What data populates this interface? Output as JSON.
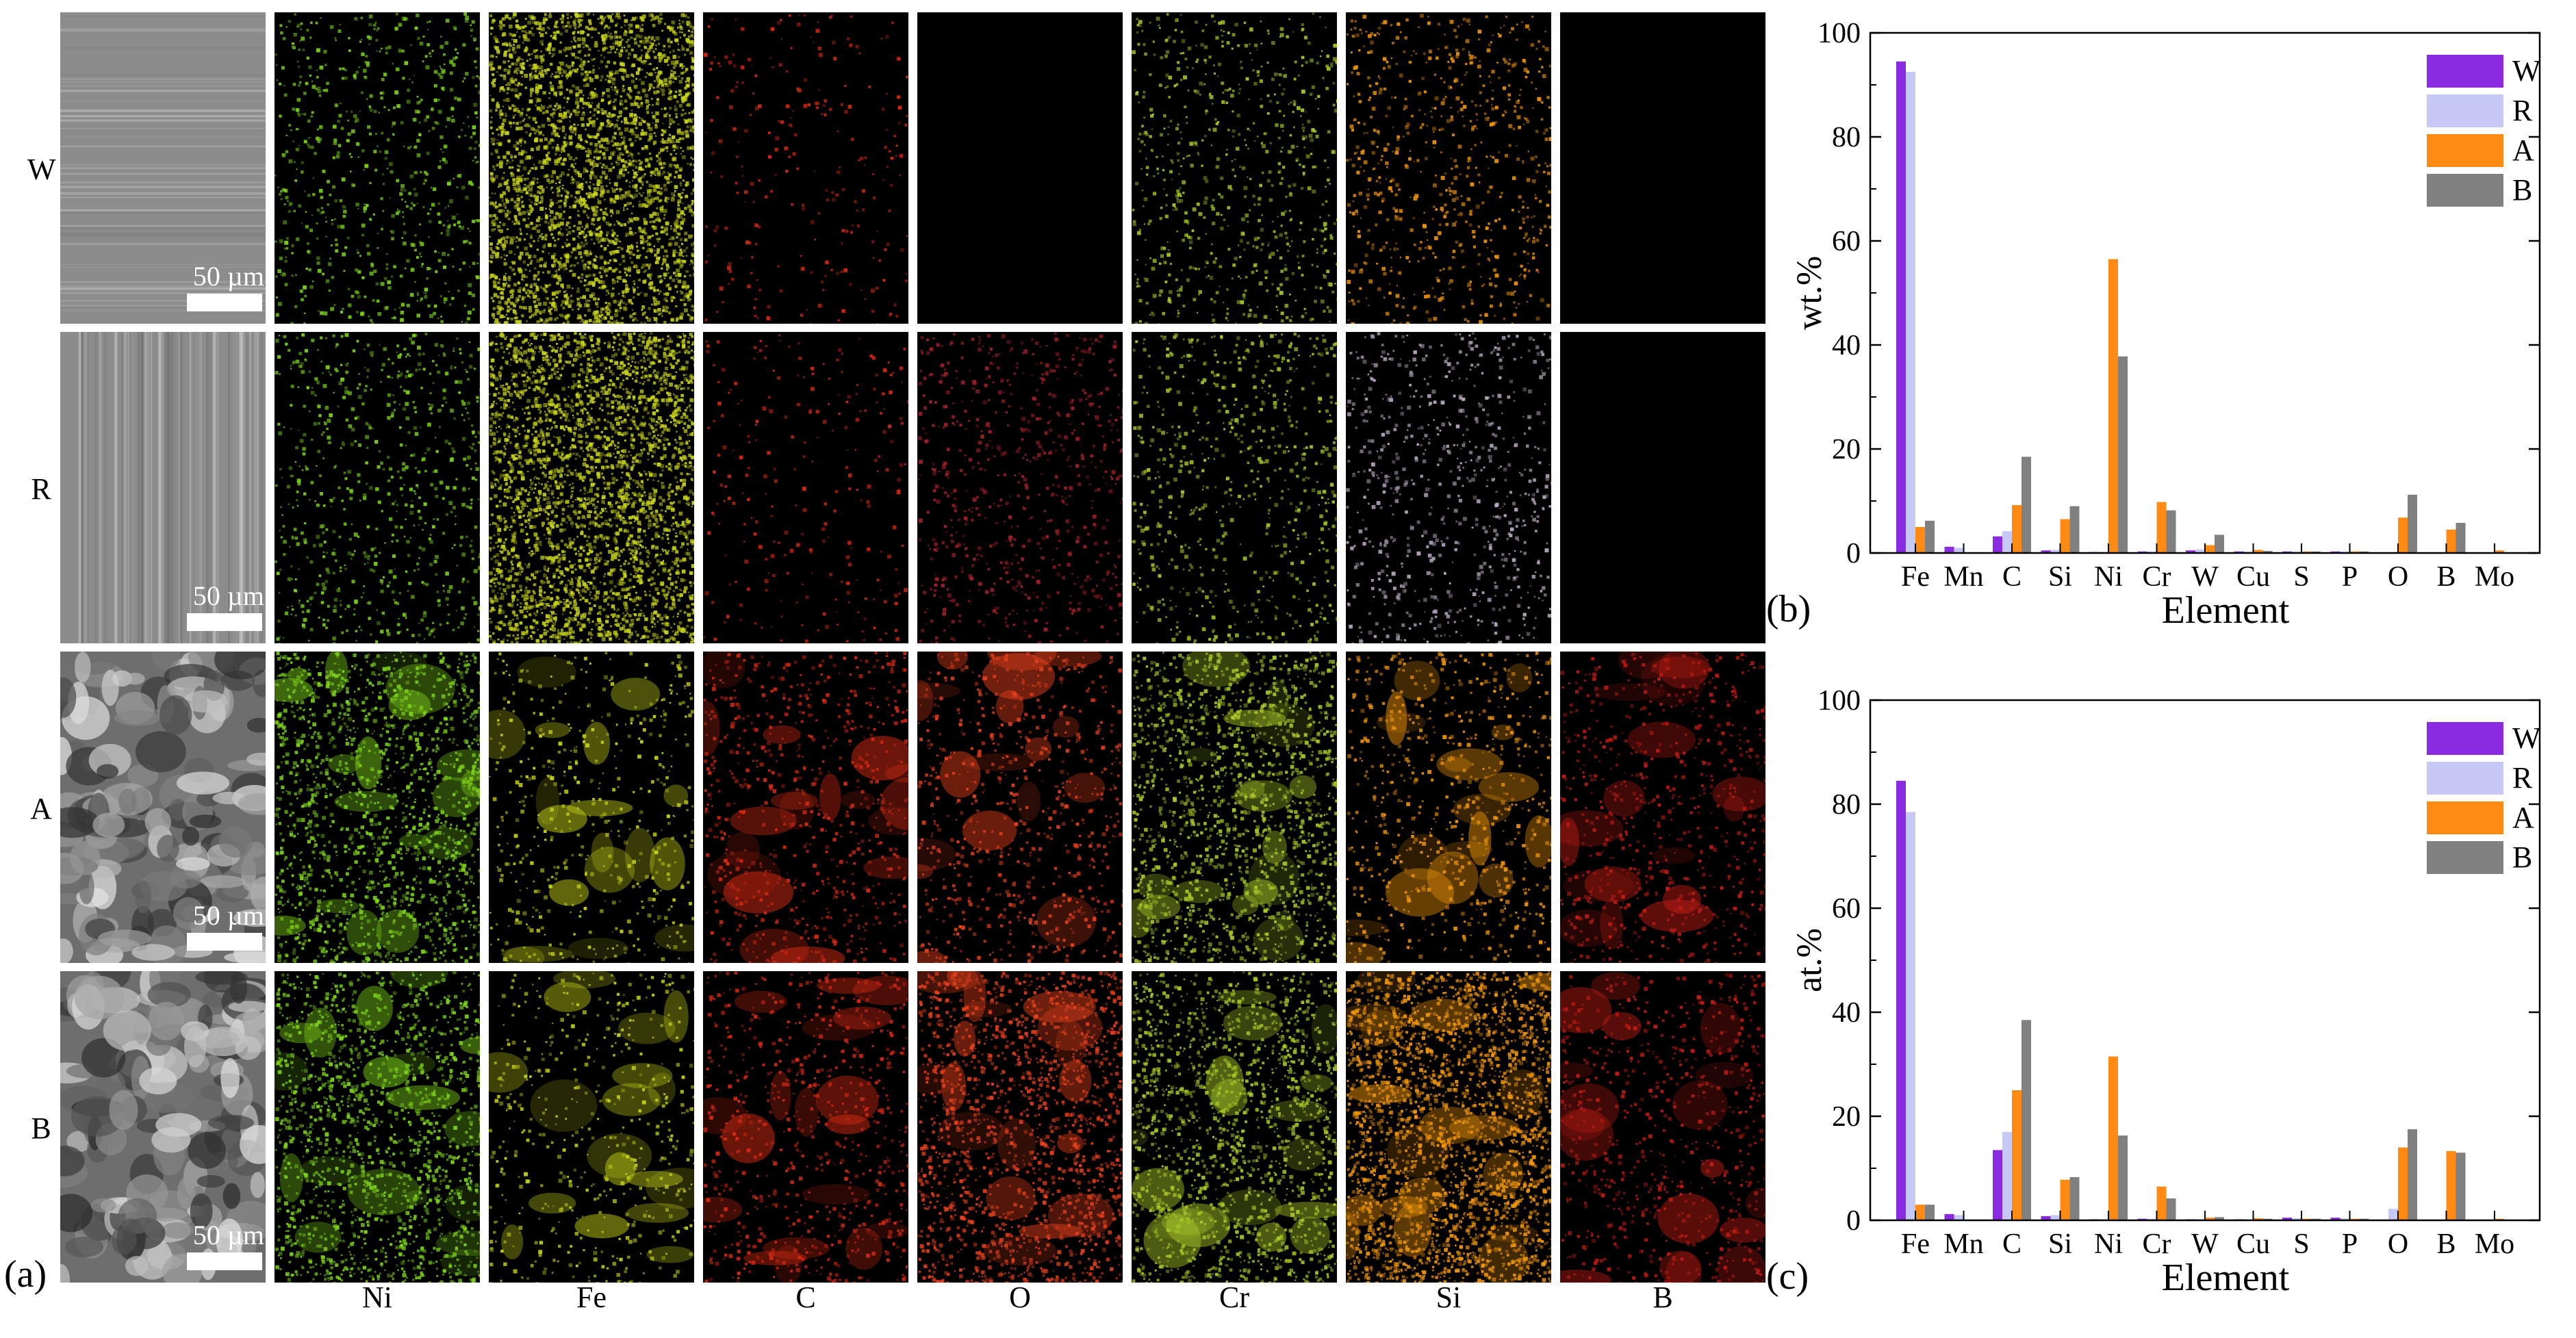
{
  "eds_maps": {
    "rows": [
      "W",
      "R",
      "A",
      "B"
    ],
    "columns": [
      "Ni",
      "Fe",
      "C",
      "O",
      "Cr",
      "Si",
      "B"
    ],
    "scale_bar": "50 µm",
    "panel_label": "(a)",
    "colors": {
      "Ni": "#7fd41a",
      "Fe": "#c8d418",
      "C": "#d82a14",
      "O": "#e6401c",
      "Cr": "#a8c828",
      "Si": "#f0960a",
      "B": "#c01c14"
    },
    "empty_maps": [
      "W-O",
      "W-B",
      "R-B"
    ]
  },
  "chart_data": [
    {
      "type": "bar",
      "panel_label": "(b)",
      "title": "",
      "xlabel": "Element",
      "ylabel": "wt.%",
      "ylim": [
        0,
        100
      ],
      "yticks": [
        0,
        20,
        40,
        60,
        80,
        100
      ],
      "legend_position": "top-right",
      "categories": [
        "Fe",
        "Mn",
        "C",
        "Si",
        "Ni",
        "Cr",
        "W",
        "Cu",
        "S",
        "P",
        "O",
        "B",
        "Mo"
      ],
      "series": [
        {
          "name": "W",
          "color": "#8a2be2",
          "values": [
            94.5,
            1.2,
            3.2,
            0.5,
            0.2,
            0.3,
            0.5,
            0.3,
            0.3,
            0.3,
            0,
            0,
            0
          ]
        },
        {
          "name": "R",
          "color": "#c6c8f5",
          "values": [
            92.5,
            1.0,
            4.2,
            0.6,
            0.2,
            0.3,
            0.7,
            0.3,
            0.3,
            0.3,
            0,
            0,
            0
          ]
        },
        {
          "name": "A",
          "color": "#ff8a14",
          "values": [
            5.0,
            0,
            9.2,
            6.5,
            56.5,
            9.8,
            1.5,
            0.6,
            0.3,
            0.3,
            6.8,
            4.5,
            0.5
          ]
        },
        {
          "name": "B",
          "color": "#808080",
          "values": [
            6.2,
            0,
            18.5,
            9.0,
            37.8,
            8.2,
            3.5,
            0.4,
            0.3,
            0.3,
            11.2,
            5.8,
            0
          ]
        }
      ]
    },
    {
      "type": "bar",
      "panel_label": "(c)",
      "title": "",
      "xlabel": "Element",
      "ylabel": "at.%",
      "ylim": [
        0,
        100
      ],
      "yticks": [
        0,
        20,
        40,
        60,
        80,
        100
      ],
      "legend_position": "top-right",
      "categories": [
        "Fe",
        "Mn",
        "C",
        "Si",
        "Ni",
        "Cr",
        "W",
        "Cu",
        "S",
        "P",
        "O",
        "B",
        "Mo"
      ],
      "series": [
        {
          "name": "W",
          "color": "#8a2be2",
          "values": [
            84.5,
            1.2,
            13.5,
            0.8,
            0.2,
            0.3,
            0.2,
            0.2,
            0.5,
            0.5,
            0,
            0,
            0
          ]
        },
        {
          "name": "R",
          "color": "#c6c8f5",
          "values": [
            78.5,
            1.0,
            17.0,
            1.0,
            0.2,
            0.3,
            0.2,
            0.2,
            0.4,
            0.4,
            2.2,
            0,
            0
          ]
        },
        {
          "name": "A",
          "color": "#ff8a14",
          "values": [
            3.0,
            0,
            25.0,
            7.8,
            31.5,
            6.5,
            0.5,
            0.4,
            0.3,
            0.3,
            14.0,
            13.3,
            0.3
          ]
        },
        {
          "name": "B",
          "color": "#808080",
          "values": [
            3.0,
            0,
            38.5,
            8.3,
            16.3,
            4.2,
            0.6,
            0.3,
            0.3,
            0.3,
            17.5,
            13.0,
            0
          ]
        }
      ]
    }
  ]
}
